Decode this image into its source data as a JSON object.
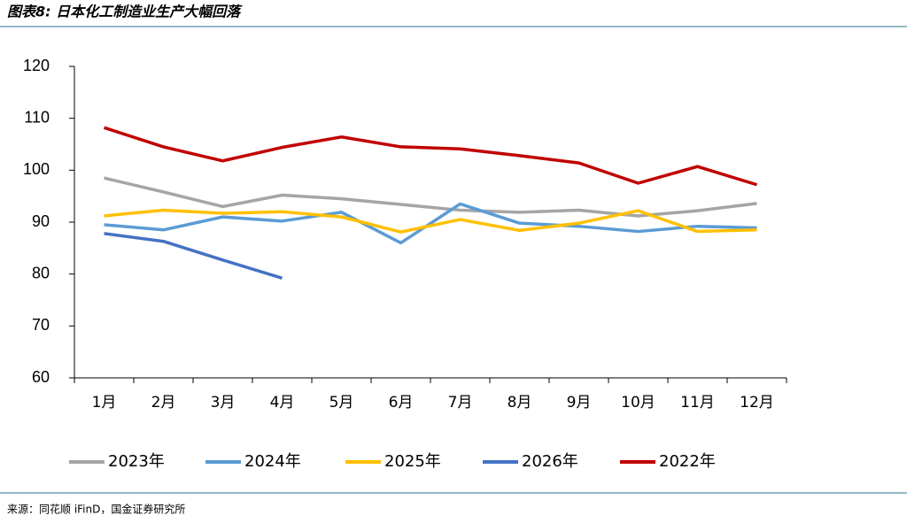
{
  "chart_data": {
    "type": "line",
    "title": "图表8: 日本化工制造业生产大幅回落",
    "source": "来源：同花顺 iFinD，国金证券研究所",
    "categories": [
      "1月",
      "2月",
      "3月",
      "4月",
      "5月",
      "6月",
      "7月",
      "8月",
      "9月",
      "10月",
      "11月",
      "12月"
    ],
    "series": [
      {
        "name": "2023年",
        "color": "#a5a5a5",
        "values": [
          98.5,
          95.8,
          93.0,
          95.2,
          94.5,
          93.4,
          92.3,
          91.9,
          92.3,
          91.2,
          92.2,
          93.6
        ]
      },
      {
        "name": "2024年",
        "color": "#5b9bd5",
        "values": [
          89.5,
          88.5,
          91.0,
          90.2,
          91.9,
          86.0,
          93.5,
          89.8,
          89.2,
          88.2,
          89.2,
          88.9
        ]
      },
      {
        "name": "2025年",
        "color": "#ffc000",
        "values": [
          91.2,
          92.3,
          91.7,
          92.0,
          91.0,
          88.1,
          90.5,
          88.4,
          89.8,
          92.2,
          88.2,
          88.5
        ]
      },
      {
        "name": "2026年",
        "color": "#4472c4",
        "values": [
          87.8,
          86.3,
          82.7,
          79.2,
          null,
          null,
          null,
          null,
          null,
          null,
          null,
          null
        ]
      },
      {
        "name": "2022年",
        "color": "#c00000",
        "values": [
          108.2,
          104.5,
          101.8,
          104.4,
          106.4,
          104.5,
          104.1,
          102.8,
          101.4,
          97.5,
          100.7,
          97.2
        ]
      }
    ],
    "ylim": [
      60,
      120
    ],
    "yticks": [
      60,
      70,
      80,
      90,
      100,
      110,
      120
    ],
    "grid": false,
    "legend": "bottom"
  }
}
